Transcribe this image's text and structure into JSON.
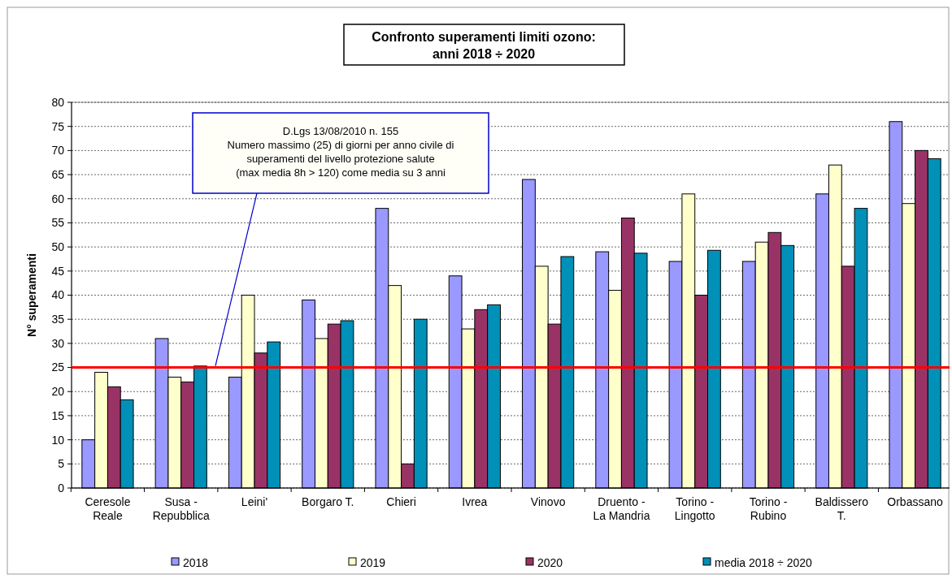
{
  "chart_data": {
    "type": "bar",
    "title": "Confronto superamenti limiti ozono:\nanni 2018 ÷ 2020",
    "ylabel": "N° superamenti",
    "categories": [
      "Ceresole\nReale",
      "Susa -\nRepubblica",
      "Leini'",
      "Borgaro T.",
      "Chieri",
      "Ivrea",
      "Vinovo",
      "Druento -\nLa Mandria",
      "Torino -\nLingotto",
      "Torino -\nRubino",
      "Baldissero\nT.",
      "Orbassano"
    ],
    "series": [
      {
        "name": "2018",
        "color": "#9999ff",
        "values": [
          10,
          31,
          23,
          39,
          58,
          44,
          64,
          49,
          47,
          47,
          61,
          76
        ]
      },
      {
        "name": "2019",
        "color": "#ffffcc",
        "values": [
          24,
          23,
          40,
          31,
          42,
          33,
          46,
          41,
          61,
          51,
          67,
          59
        ]
      },
      {
        "name": "2020",
        "color": "#993366",
        "values": [
          21,
          22,
          28,
          34,
          5,
          37,
          34,
          56,
          40,
          53,
          46,
          70
        ]
      },
      {
        "name": "media 2018 ÷ 2020",
        "color": "#0090b8",
        "values": [
          18.3,
          25.3,
          30.3,
          34.7,
          35,
          38,
          48,
          48.7,
          49.3,
          50.3,
          58,
          68.3
        ]
      }
    ],
    "ylim": [
      0,
      80
    ],
    "yticks": [
      0,
      5,
      10,
      15,
      20,
      25,
      30,
      35,
      40,
      45,
      50,
      55,
      60,
      65,
      70,
      75,
      80
    ],
    "grid": "y",
    "legend": "bottom",
    "annotations": [
      "D.Lgs 13/08/2010 n. 155\nNumero massimo (25) di giorni per anno civile di\nsuperamenti del livello protezione salute\n(max media 8h > 120)  come media su 3 anni"
    ],
    "ref_lines": [
      {
        "axis": "y",
        "value": 25,
        "color": "#ff0000"
      }
    ]
  }
}
